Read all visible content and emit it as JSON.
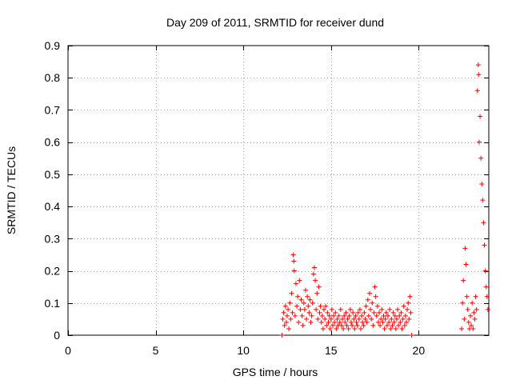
{
  "chart_data": {
    "type": "scatter",
    "title": "Day 209 of 2011, SRMTID for receiver dund",
    "xlabel": "GPS time / hours",
    "ylabel": "SRMTID / TECUs",
    "xlim": [
      0,
      24
    ],
    "ylim": [
      0,
      0.9
    ],
    "xticks": [
      "0",
      "5",
      "10",
      "15",
      "20"
    ],
    "yticks": [
      "0",
      "0.1",
      "0.2",
      "0.3",
      "0.4",
      "0.5",
      "0.6",
      "0.7",
      "0.8",
      "0.9"
    ],
    "xtick_values": [
      0,
      5,
      10,
      15,
      20
    ],
    "ytick_values": [
      0,
      0.1,
      0.2,
      0.3,
      0.4,
      0.5,
      0.6,
      0.7,
      0.8,
      0.9
    ],
    "grid": true,
    "marker": "+",
    "color": "#ff0000",
    "series": [
      {
        "points": [
          [
            12.2,
            0.0
          ],
          [
            12.25,
            0.05
          ],
          [
            12.3,
            0.07
          ],
          [
            12.35,
            0.03
          ],
          [
            12.4,
            0.09
          ],
          [
            12.45,
            0.04
          ],
          [
            12.5,
            0.06
          ],
          [
            12.55,
            0.08
          ],
          [
            12.6,
            0.02
          ],
          [
            12.65,
            0.1
          ],
          [
            12.7,
            0.05
          ],
          [
            12.75,
            0.13
          ],
          [
            12.8,
            0.07
          ],
          [
            12.85,
            0.25
          ],
          [
            12.88,
            0.23
          ],
          [
            12.9,
            0.2
          ],
          [
            12.95,
            0.06
          ],
          [
            13.0,
            0.16
          ],
          [
            13.05,
            0.09
          ],
          [
            13.1,
            0.12
          ],
          [
            13.15,
            0.04
          ],
          [
            13.2,
            0.17
          ],
          [
            13.25,
            0.08
          ],
          [
            13.3,
            0.11
          ],
          [
            13.35,
            0.06
          ],
          [
            13.4,
            0.03
          ],
          [
            13.45,
            0.1
          ],
          [
            13.5,
            0.08
          ],
          [
            13.55,
            0.14
          ],
          [
            13.6,
            0.05
          ],
          [
            13.65,
            0.12
          ],
          [
            13.7,
            0.09
          ],
          [
            13.75,
            0.07
          ],
          [
            13.8,
            0.11
          ],
          [
            13.85,
            0.04
          ],
          [
            13.9,
            0.06
          ],
          [
            13.95,
            0.1
          ],
          [
            14.0,
            0.19
          ],
          [
            14.05,
            0.21
          ],
          [
            14.1,
            0.17
          ],
          [
            14.15,
            0.08
          ],
          [
            14.2,
            0.13
          ],
          [
            14.25,
            0.05
          ],
          [
            14.3,
            0.15
          ],
          [
            14.35,
            0.07
          ],
          [
            14.4,
            0.09
          ],
          [
            14.45,
            0.04
          ],
          [
            14.5,
            0.06
          ],
          [
            14.55,
            0.02
          ],
          [
            14.6,
            0.08
          ],
          [
            14.65,
            0.05
          ],
          [
            14.7,
            0.09
          ],
          [
            14.75,
            0.03
          ],
          [
            14.8,
            0.07
          ],
          [
            14.85,
            0.04
          ],
          [
            14.9,
            0.06
          ],
          [
            14.95,
            0.02
          ],
          [
            15.0,
            0.05
          ],
          [
            15.05,
            0.08
          ],
          [
            15.1,
            0.03
          ],
          [
            15.15,
            0.06
          ],
          [
            15.2,
            0.04
          ],
          [
            15.25,
            0.07
          ],
          [
            15.3,
            0.02
          ],
          [
            15.35,
            0.05
          ],
          [
            15.4,
            0.03
          ],
          [
            15.45,
            0.06
          ],
          [
            15.5,
            0.04
          ],
          [
            15.55,
            0.08
          ],
          [
            15.6,
            0.03
          ],
          [
            15.65,
            0.05
          ],
          [
            15.7,
            0.02
          ],
          [
            15.75,
            0.06
          ],
          [
            15.8,
            0.04
          ],
          [
            15.85,
            0.07
          ],
          [
            15.9,
            0.03
          ],
          [
            15.95,
            0.05
          ],
          [
            16.0,
            0.02
          ],
          [
            16.05,
            0.06
          ],
          [
            16.1,
            0.08
          ],
          [
            16.15,
            0.04
          ],
          [
            16.2,
            0.03
          ],
          [
            16.25,
            0.07
          ],
          [
            16.3,
            0.05
          ],
          [
            16.35,
            0.02
          ],
          [
            16.4,
            0.06
          ],
          [
            16.45,
            0.04
          ],
          [
            16.5,
            0.03
          ],
          [
            16.55,
            0.07
          ],
          [
            16.6,
            0.05
          ],
          [
            16.65,
            0.08
          ],
          [
            16.7,
            0.02
          ],
          [
            16.75,
            0.06
          ],
          [
            16.8,
            0.04
          ],
          [
            16.85,
            0.03
          ],
          [
            16.9,
            0.07
          ],
          [
            16.95,
            0.05
          ],
          [
            17.0,
            0.09
          ],
          [
            17.05,
            0.04
          ],
          [
            17.1,
            0.11
          ],
          [
            17.15,
            0.06
          ],
          [
            17.2,
            0.13
          ],
          [
            17.25,
            0.08
          ],
          [
            17.3,
            0.05
          ],
          [
            17.35,
            0.1
          ],
          [
            17.4,
            0.03
          ],
          [
            17.45,
            0.07
          ],
          [
            17.5,
            0.15
          ],
          [
            17.55,
            0.12
          ],
          [
            17.6,
            0.06
          ],
          [
            17.65,
            0.09
          ],
          [
            17.7,
            0.04
          ],
          [
            17.75,
            0.07
          ],
          [
            17.8,
            0.03
          ],
          [
            17.85,
            0.05
          ],
          [
            17.9,
            0.08
          ],
          [
            17.95,
            0.04
          ],
          [
            18.0,
            0.06
          ],
          [
            18.05,
            0.02
          ],
          [
            18.1,
            0.05
          ],
          [
            18.15,
            0.07
          ],
          [
            18.2,
            0.03
          ],
          [
            18.25,
            0.06
          ],
          [
            18.3,
            0.04
          ],
          [
            18.35,
            0.08
          ],
          [
            18.4,
            0.02
          ],
          [
            18.45,
            0.05
          ],
          [
            18.5,
            0.03
          ],
          [
            18.55,
            0.07
          ],
          [
            18.6,
            0.04
          ],
          [
            18.65,
            0.06
          ],
          [
            18.7,
            0.02
          ],
          [
            18.75,
            0.05
          ],
          [
            18.8,
            0.08
          ],
          [
            18.85,
            0.03
          ],
          [
            18.9,
            0.06
          ],
          [
            18.95,
            0.04
          ],
          [
            19.0,
            0.07
          ],
          [
            19.05,
            0.02
          ],
          [
            19.1,
            0.05
          ],
          [
            19.15,
            0.09
          ],
          [
            19.2,
            0.03
          ],
          [
            19.25,
            0.06
          ],
          [
            19.3,
            0.04
          ],
          [
            19.35,
            0.08
          ],
          [
            19.4,
            0.1
          ],
          [
            19.45,
            0.05
          ],
          [
            19.5,
            0.12
          ],
          [
            19.55,
            0.07
          ],
          [
            19.6,
            0.0
          ],
          [
            22.45,
            0.02
          ],
          [
            22.5,
            0.1
          ],
          [
            22.55,
            0.17
          ],
          [
            22.6,
            0.05
          ],
          [
            22.65,
            0.27
          ],
          [
            22.7,
            0.22
          ],
          [
            22.75,
            0.12
          ],
          [
            22.8,
            0.08
          ],
          [
            22.85,
            0.04
          ],
          [
            22.9,
            0.02
          ],
          [
            22.95,
            0.06
          ],
          [
            23.0,
            0.03
          ],
          [
            23.05,
            0.1
          ],
          [
            23.1,
            0.02
          ],
          [
            23.15,
            0.07
          ],
          [
            23.2,
            0.05
          ],
          [
            23.25,
            0.12
          ],
          [
            23.3,
            0.08
          ],
          [
            23.35,
            0.76
          ],
          [
            23.4,
            0.84
          ],
          [
            23.42,
            0.81
          ],
          [
            23.45,
            0.6
          ],
          [
            23.5,
            0.68
          ],
          [
            23.55,
            0.55
          ],
          [
            23.6,
            0.47
          ],
          [
            23.65,
            0.42
          ],
          [
            23.7,
            0.35
          ],
          [
            23.75,
            0.28
          ],
          [
            23.8,
            0.2
          ],
          [
            23.85,
            0.15
          ],
          [
            23.9,
            0.12
          ],
          [
            23.95,
            0.08
          ]
        ]
      }
    ]
  }
}
